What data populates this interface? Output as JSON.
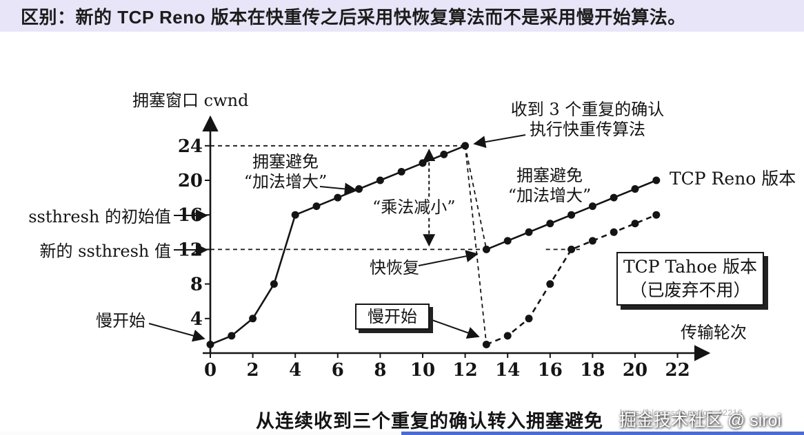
{
  "banner": {
    "text": "区别：新的 TCP Reno 版本在快重传之后采用快恢复算法而不是采用慢开始算法。",
    "bg_color": "#e7e5f7"
  },
  "figure": {
    "caption": "从连续收到三个重复的确认转入拥塞避免",
    "labels": {
      "dup_ack_line1": "收到 3 个重复的确认",
      "dup_ack_line2": "执行快重传算法",
      "ca_add1_line1": "拥塞避免",
      "ca_add1_line2": "“加法增大”",
      "multiplicative_decrease": "“乘法减小”",
      "ca_add2_line1": "拥塞避免",
      "ca_add2_line2": "“加法增大”",
      "fast_recovery": "快恢复",
      "slow_start_box": "慢开始",
      "slow_start_left": "慢开始",
      "ssthresh_initial": "ssthresh 的初始值",
      "ssthresh_new": "新的 ssthresh 值",
      "reno_label": "TCP Reno 版本",
      "tahoe_line1": "TCP Tahoe 版本",
      "tahoe_line2": "（已废弃不用）"
    },
    "ink_color": "#141414"
  },
  "watermark": {
    "site": "掘金技术社区 @ siroi",
    "url": "https://blog.csdn.net/qq_42216"
  },
  "chart_data": {
    "type": "line",
    "title": "从连续收到三个重复的确认转入拥塞避免",
    "xlabel": "传输轮次",
    "ylabel": "拥塞窗口 cwnd",
    "xticks": [
      0,
      2,
      4,
      6,
      8,
      10,
      12,
      14,
      16,
      18,
      20,
      22
    ],
    "yticks": [
      0,
      4,
      8,
      12,
      16,
      20,
      24
    ],
    "xlim": [
      0,
      23.5
    ],
    "ylim": [
      0,
      27
    ],
    "grid": false,
    "legend_position": "inline-labels",
    "series": [
      {
        "name": "TCP Reno 版本",
        "line_style": "solid",
        "marker": "filled-circle",
        "segments": [
          [
            [
              0,
              1
            ],
            [
              1,
              2
            ],
            [
              2,
              4
            ],
            [
              3,
              8
            ],
            [
              4,
              16
            ],
            [
              5,
              17
            ],
            [
              6,
              18
            ],
            [
              7,
              19
            ],
            [
              8,
              20
            ],
            [
              9,
              21
            ],
            [
              10,
              22
            ],
            [
              11,
              23
            ],
            [
              12,
              24
            ]
          ],
          [
            [
              13,
              12
            ],
            [
              14,
              13
            ],
            [
              15,
              14
            ],
            [
              16,
              15
            ],
            [
              17,
              16
            ],
            [
              18,
              17
            ],
            [
              19,
              18
            ],
            [
              20,
              19
            ],
            [
              21,
              20
            ]
          ]
        ]
      },
      {
        "name": "TCP Tahoe 版本（已废弃不用）",
        "line_style": "dashed",
        "marker": "filled-circle",
        "segments": [
          [
            [
              13,
              1
            ],
            [
              14,
              2
            ],
            [
              15,
              4
            ],
            [
              16,
              8
            ],
            [
              17,
              12
            ],
            [
              18,
              13
            ],
            [
              19,
              14
            ],
            [
              20,
              15
            ],
            [
              21,
              16
            ]
          ]
        ]
      }
    ],
    "annotations": {
      "ssthresh_initial_value": 16,
      "ssthresh_new_value": 12,
      "fast_retransmit_point": [
        12,
        24
      ],
      "fast_recovery_point": [
        13,
        12
      ],
      "tahoe_slow_start_restart_point": [
        13,
        1
      ]
    },
    "guides": [
      {
        "type": "hline",
        "y": 24,
        "x1": 0,
        "x2": 12
      },
      {
        "type": "hline",
        "y": 12,
        "x1": 0,
        "x2": 13
      },
      {
        "type": "segment",
        "from": [
          12,
          24
        ],
        "to": [
          13,
          12
        ]
      },
      {
        "type": "segment",
        "from": [
          12,
          24
        ],
        "to": [
          13,
          1
        ]
      },
      {
        "type": "hline",
        "y": 12,
        "x1": 15.8,
        "x2": 17.4
      },
      {
        "type": "vrange",
        "x": 10.3,
        "y1": 12,
        "y2": 24
      }
    ]
  }
}
